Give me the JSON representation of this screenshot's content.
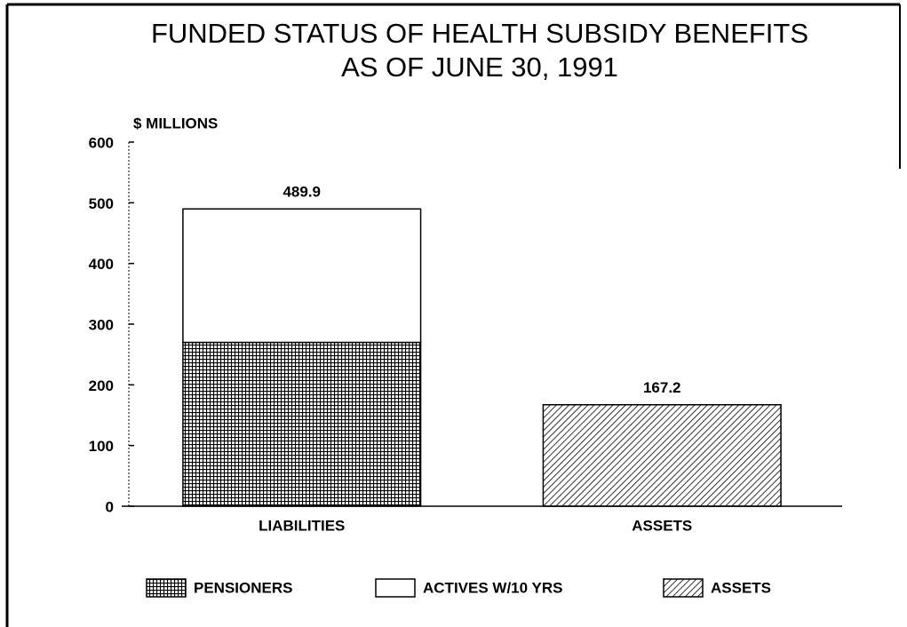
{
  "chart_data": {
    "type": "stacked_bar",
    "title": [
      "FUNDED STATUS OF HEALTH SUBSIDY BENEFITS",
      "AS OF JUNE 30, 1991"
    ],
    "ylabel": "$ MILLIONS",
    "categories": [
      "LIABILITIES",
      "ASSETS"
    ],
    "series": [
      {
        "name": "PENSIONERS",
        "color": "#000000",
        "pattern": "grid",
        "values": [
          270,
          null
        ]
      },
      {
        "name": "ACTIVES W/10 YRS",
        "color": "#000000",
        "pattern": "none",
        "values": [
          219.9,
          null
        ]
      },
      {
        "name": "ASSETS",
        "color": "#000000",
        "pattern": "diagonal",
        "values": [
          null,
          167.2
        ]
      }
    ],
    "totals": [
      489.9,
      167.2
    ],
    "ylim": [
      0,
      600
    ],
    "yticks": [
      0,
      100,
      200,
      300,
      400,
      500,
      600
    ],
    "grid": false,
    "legend": "bottom"
  }
}
